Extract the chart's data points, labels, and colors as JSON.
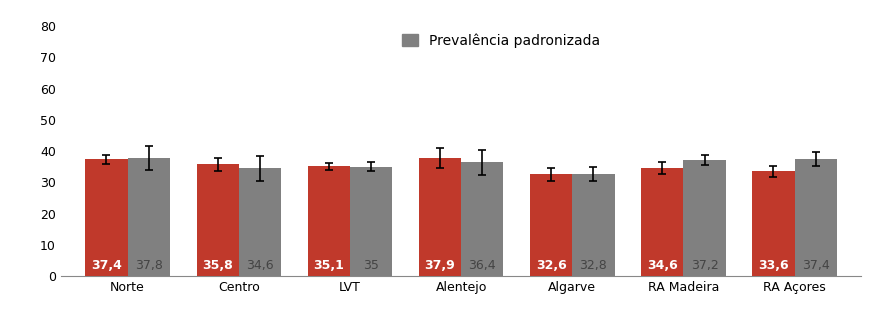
{
  "categories": [
    "Norte",
    "Centro",
    "LVT",
    "Alentejo",
    "Algarve",
    "RA Madeira",
    "RA Açores"
  ],
  "red_values": [
    37.4,
    35.8,
    35.1,
    37.9,
    32.6,
    34.6,
    33.6
  ],
  "gray_values": [
    37.8,
    34.6,
    35.0,
    36.4,
    32.8,
    37.2,
    37.4
  ],
  "red_errors": [
    1.5,
    2.0,
    1.2,
    3.2,
    2.0,
    2.0,
    1.8
  ],
  "gray_errors": [
    3.8,
    4.0,
    1.5,
    4.0,
    2.2,
    1.5,
    2.2
  ],
  "red_color": "#c0392b",
  "gray_color": "#808080",
  "legend_label": "Prevalência padronizada",
  "ylim": [
    0,
    80
  ],
  "yticks": [
    0,
    10,
    20,
    30,
    40,
    50,
    60,
    70,
    80
  ],
  "bar_width": 0.38,
  "label_fontsize": 9,
  "tick_fontsize": 9,
  "legend_fontsize": 10,
  "red_label_color": "#ffffff",
  "gray_label_color": "#444444",
  "background_color": "#ffffff"
}
